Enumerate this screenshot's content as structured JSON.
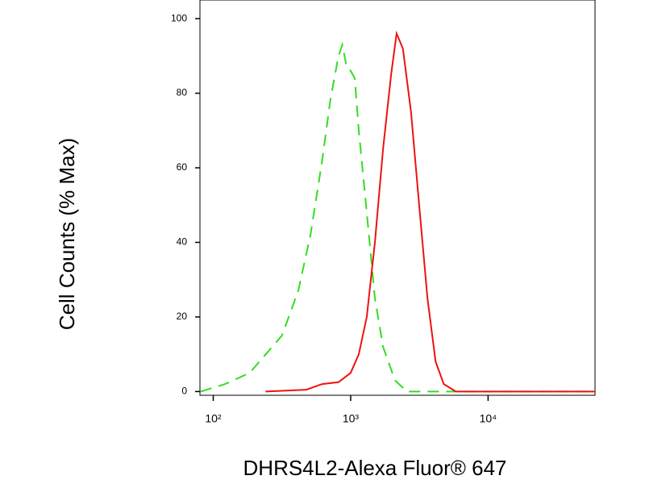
{
  "chart_data": {
    "type": "line",
    "x_label": "DHRS4L2-Alexa Fluor® 647",
    "y_label": "Cell Counts (% Max)",
    "log_x": true,
    "xlim": [
      80,
      60000
    ],
    "ylim": [
      -1,
      105
    ],
    "xticks": [
      {
        "value": 100,
        "label": "10²"
      },
      {
        "value": 1000,
        "label": "10³"
      },
      {
        "value": 10000,
        "label": "10⁴"
      }
    ],
    "yticks": [
      0,
      20,
      40,
      60,
      80,
      100
    ],
    "series": [
      {
        "color": "#33dd22",
        "style": "dashed",
        "x": [
          81,
          122,
          184,
          241,
          316,
          415,
          510,
          620,
          710,
          815,
          870,
          935,
          1000,
          1070,
          1145,
          1310,
          1500,
          1720,
          2100,
          2570,
          60000
        ],
        "values": [
          0,
          2,
          5,
          10,
          15,
          27,
          42,
          62,
          78,
          90,
          93,
          87,
          86,
          84,
          70,
          48,
          25,
          12,
          3,
          0,
          0
        ]
      },
      {
        "color": "#ee1111",
        "style": "solid",
        "x": [
          240,
          475,
          620,
          815,
          1000,
          1145,
          1310,
          1500,
          1720,
          1970,
          2160,
          2400,
          2750,
          3150,
          3620,
          4150,
          4760,
          5830,
          60000
        ],
        "values": [
          0,
          0.5,
          2,
          2.5,
          5,
          10,
          20,
          40,
          65,
          85,
          96,
          92,
          75,
          50,
          25,
          8,
          2,
          0,
          0
        ]
      }
    ]
  }
}
